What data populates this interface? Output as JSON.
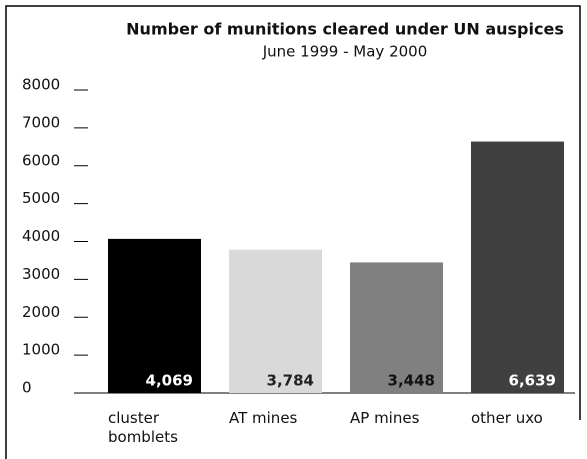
{
  "chart_data": {
    "type": "bar",
    "title": "Number of munitions cleared under UN auspices",
    "subtitle": "June 1999 - May 2000",
    "categories": [
      "cluster bomblets",
      "AT mines",
      "AP mines",
      "other uxo"
    ],
    "values": [
      4069,
      3784,
      3448,
      6639
    ],
    "value_labels": [
      "4,069",
      "3,784",
      "3,448",
      "6,639"
    ],
    "colors": [
      "#000000",
      "#d9d9d9",
      "#808080",
      "#404040"
    ],
    "ylim": [
      0,
      8000
    ],
    "yticks": [
      0,
      1000,
      2000,
      3000,
      4000,
      5000,
      6000,
      7000,
      8000
    ]
  }
}
